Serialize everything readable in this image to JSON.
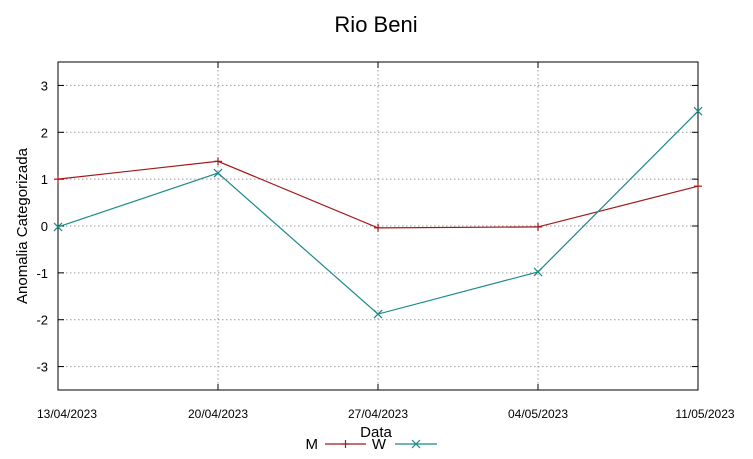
{
  "chart_data": {
    "type": "line",
    "title": "Rio Beni",
    "xlabel": "Data",
    "ylabel": "Anomalia Categorizada",
    "categories": [
      "13/04/2023",
      "20/04/2023",
      "27/04/2023",
      "04/05/2023",
      "11/05/2023"
    ],
    "ylim": [
      -3.5,
      3.5
    ],
    "yticks": [
      -3,
      -2,
      -1,
      0,
      1,
      2,
      3
    ],
    "grid": true,
    "legend_position": "bottom-center",
    "series": [
      {
        "name": "M",
        "marker": "plus",
        "color": "#a31919",
        "values": [
          1.0,
          1.38,
          -0.04,
          -0.02,
          0.85
        ]
      },
      {
        "name": "W",
        "marker": "cross",
        "color": "#1a8a8a",
        "values": [
          -0.02,
          1.13,
          -1.88,
          -0.98,
          2.45
        ]
      }
    ]
  }
}
